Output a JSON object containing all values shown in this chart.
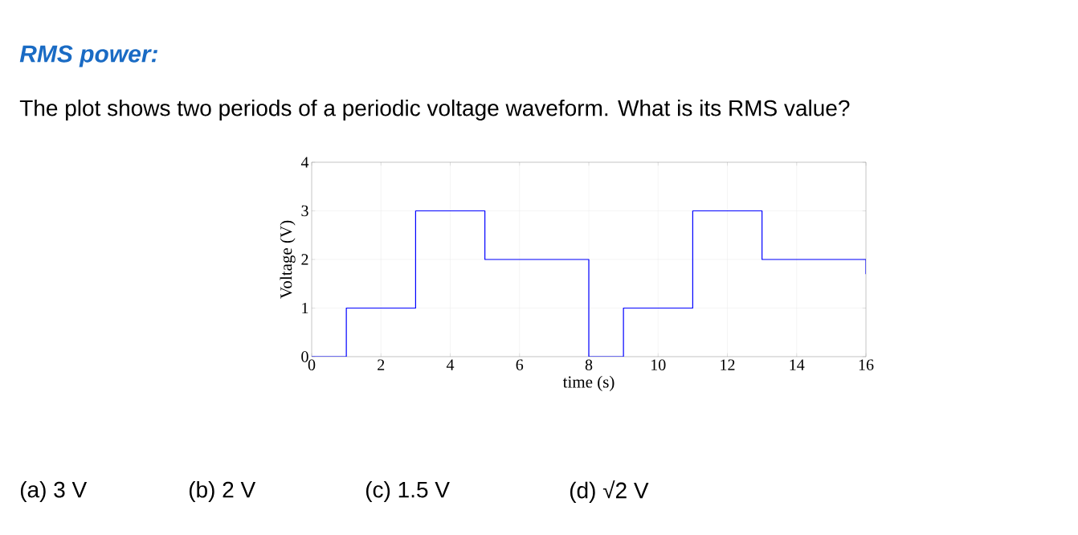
{
  "chart_data": {
    "type": "step",
    "title": "RMS power:",
    "subtitle": "The plot shows two periods of a periodic voltage waveform. What is its RMS value?",
    "xlabel": "time (s)",
    "ylabel": "Voltage (V)",
    "x": [
      0,
      1,
      3,
      5,
      8,
      9,
      11,
      13,
      16,
      16
    ],
    "series": [
      {
        "color": "#0000ff",
        "values": [
          0,
          1,
          3,
          2,
          0,
          1,
          3,
          2,
          2,
          1.7
        ]
      }
    ],
    "xlim": [
      0,
      16
    ],
    "ylim": [
      0,
      4
    ],
    "xticks": [
      0,
      2,
      4,
      6,
      8,
      10,
      12,
      14,
      16
    ],
    "yticks": [
      0,
      1,
      2,
      3,
      4
    ],
    "grid": true,
    "annotations": [
      "(a) 3 V",
      "(b) 2 V",
      "(c) 1.5 V",
      "(d) √2 V"
    ]
  }
}
